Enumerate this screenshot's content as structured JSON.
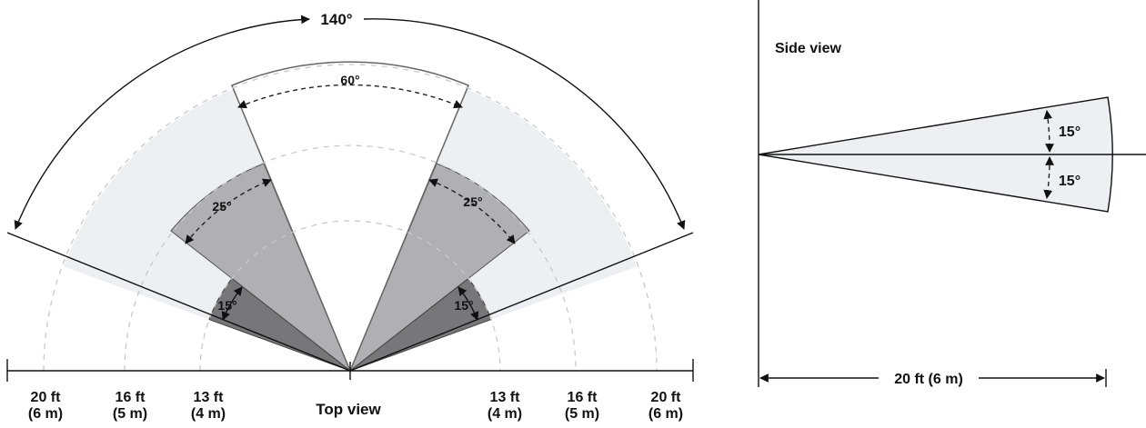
{
  "top_view": {
    "angle_outer": "140°",
    "angle_center": "60°",
    "angle_mid_left": "25°",
    "angle_mid_right": "25°",
    "angle_inner_left": "15°",
    "angle_inner_right": "15°",
    "caption": "Top view",
    "scale_left": [
      {
        "ft": "20 ft",
        "m": "(6 m)"
      },
      {
        "ft": "16 ft",
        "m": "(5 m)"
      },
      {
        "ft": "13 ft",
        "m": "(4 m)"
      }
    ],
    "scale_right": [
      {
        "ft": "13 ft",
        "m": "(4 m)"
      },
      {
        "ft": "16 ft",
        "m": "(5 m)"
      },
      {
        "ft": "20 ft",
        "m": "(6 m)"
      }
    ]
  },
  "side_view": {
    "title": "Side view",
    "angle_up": "15°",
    "angle_down": "15°",
    "distance": "20 ft (6 m)"
  },
  "colors": {
    "outer_zone": "#eeeff3",
    "mid_zone": "#b0b0b4",
    "inner_zone": "#77777a",
    "center_zone": "#ffffff",
    "side_beam": "#eeeff3"
  }
}
